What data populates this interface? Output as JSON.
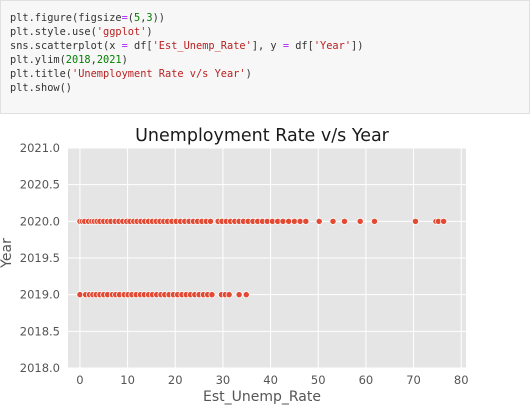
{
  "code_cell": {
    "lines": [
      [
        {
          "t": "plt.figure(figsize"
        },
        {
          "t": "=",
          "c": "op"
        },
        {
          "t": "("
        },
        {
          "t": "5",
          "c": "num"
        },
        {
          "t": ","
        },
        {
          "t": "3",
          "c": "num"
        },
        {
          "t": "))"
        }
      ],
      [
        {
          "t": "plt.style.use("
        },
        {
          "t": "'ggplot'",
          "c": "str"
        },
        {
          "t": ")"
        }
      ],
      [
        {
          "t": "sns.scatterplot(x "
        },
        {
          "t": "=",
          "c": "op"
        },
        {
          "t": " df["
        },
        {
          "t": "'Est_Unemp_Rate'",
          "c": "str"
        },
        {
          "t": "], y "
        },
        {
          "t": "=",
          "c": "op"
        },
        {
          "t": " df["
        },
        {
          "t": "'Year'",
          "c": "str"
        },
        {
          "t": "])"
        }
      ],
      [
        {
          "t": "plt.ylim("
        },
        {
          "t": "2018",
          "c": "num"
        },
        {
          "t": ","
        },
        {
          "t": "2021",
          "c": "num"
        },
        {
          "t": ")"
        }
      ],
      [
        {
          "t": "plt.title("
        },
        {
          "t": "'Unemployment Rate v/s Year'",
          "c": "str"
        },
        {
          "t": ")"
        }
      ],
      [
        {
          "t": "plt.show()"
        }
      ]
    ]
  },
  "chart_data": {
    "type": "scatter",
    "title": "Unemployment Rate v/s Year",
    "xlabel": "Est_Unemp_Rate",
    "ylabel": "Year",
    "xlim": [
      -2.5,
      81
    ],
    "ylim": [
      2018,
      2021
    ],
    "xticks": [
      0,
      10,
      20,
      30,
      40,
      50,
      60,
      70,
      80
    ],
    "yticks": [
      2018.0,
      2018.5,
      2019.0,
      2019.5,
      2020.0,
      2020.5,
      2021.0
    ],
    "grid": true,
    "style": "ggplot",
    "point_color": "#e24a33",
    "series": [
      {
        "year": 2020,
        "x": [
          0,
          0.5,
          1,
          1.8,
          2.5,
          3,
          3.6,
          4.2,
          5,
          5.8,
          6.5,
          7.4,
          8.2,
          9,
          9.8,
          10.5,
          11.3,
          12,
          12.8,
          13.6,
          14.4,
          15.2,
          16,
          16.8,
          17.6,
          18.4,
          19.3,
          20.2,
          21.1,
          22,
          22.9,
          23.8,
          24.7,
          25.6,
          26.5,
          27.4,
          29,
          29.8,
          30.7,
          31.6,
          32.5,
          33.4,
          34.3,
          35.3,
          36.3,
          37.3,
          38.3,
          39.3,
          40.4,
          41.5,
          42.6,
          43.8,
          45,
          46.2,
          47.4,
          50.2,
          53.1,
          55.5,
          58.8,
          61.8,
          70.4,
          74.7,
          75.2,
          76.3
        ]
      },
      {
        "year": 2019,
        "x": [
          0,
          1.2,
          2,
          2.7,
          3.4,
          4.2,
          5,
          5.8,
          6.8,
          7.5,
          8.3,
          9.3,
          10.1,
          10.9,
          11.8,
          12.7,
          13.5,
          14.4,
          15.2,
          16.1,
          17,
          17.8,
          18.7,
          19.6,
          20.5,
          21.4,
          22.3,
          23.2,
          24.1,
          25,
          25.9,
          26.8,
          27.7,
          29.7,
          30.5,
          31.3,
          33.4,
          34.9
        ]
      }
    ]
  }
}
